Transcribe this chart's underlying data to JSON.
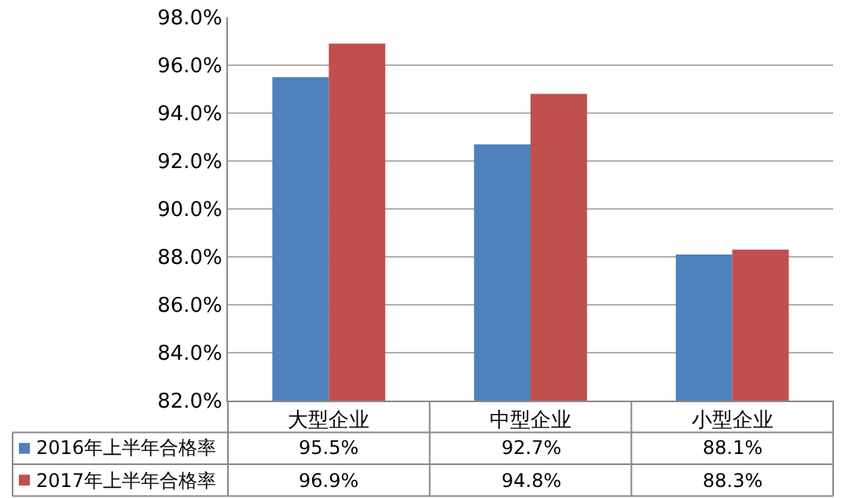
{
  "chart_data": {
    "type": "bar",
    "categories": [
      "大型企业",
      "中型企业",
      "小型企业"
    ],
    "series": [
      {
        "name": "2016年上半年合格率",
        "color": "#4f81bd",
        "values": [
          95.5,
          92.7,
          88.1
        ],
        "value_labels": [
          "95.5%",
          "92.7%",
          "88.1%"
        ]
      },
      {
        "name": "2017年上半年合格率",
        "color": "#c0504d",
        "values": [
          96.9,
          94.8,
          88.3
        ],
        "value_labels": [
          "96.9%",
          "94.8%",
          "88.3%"
        ]
      }
    ],
    "ylim": [
      82,
      98
    ],
    "yticks": [
      {
        "value": 82,
        "label": "82.0%"
      },
      {
        "value": 84,
        "label": "84.0%"
      },
      {
        "value": 86,
        "label": "86.0%"
      },
      {
        "value": 88,
        "label": "88.0%"
      },
      {
        "value": 90,
        "label": "90.0%"
      },
      {
        "value": 92,
        "label": "92.0%"
      },
      {
        "value": 94,
        "label": "94.0%"
      },
      {
        "value": 96,
        "label": "96.0%"
      },
      {
        "value": 98,
        "label": "98.0%"
      }
    ],
    "grid": "y",
    "legend": "bottom"
  }
}
